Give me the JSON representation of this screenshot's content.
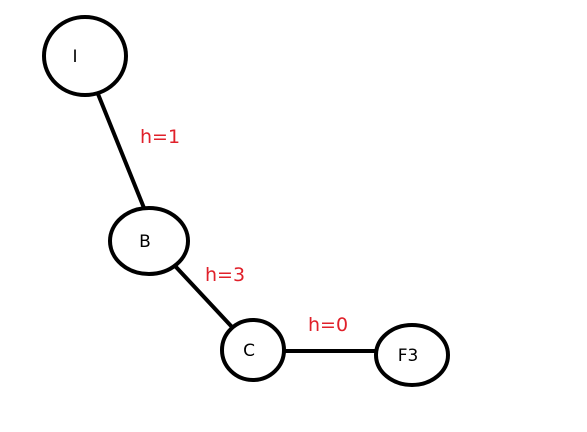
{
  "diagram": {
    "nodes": [
      {
        "id": "I",
        "label": "I"
      },
      {
        "id": "B",
        "label": "B"
      },
      {
        "id": "C",
        "label": "C"
      },
      {
        "id": "F3",
        "label": "F3"
      }
    ],
    "edges": [
      {
        "from": "I",
        "to": "B",
        "label": "h=1"
      },
      {
        "from": "B",
        "to": "C",
        "label": "h=3"
      },
      {
        "from": "C",
        "to": "F3",
        "label": "h=0"
      }
    ],
    "colors": {
      "stroke": "#000000",
      "node_fill": "#ffffff",
      "edge_label": "#e0202a"
    }
  }
}
